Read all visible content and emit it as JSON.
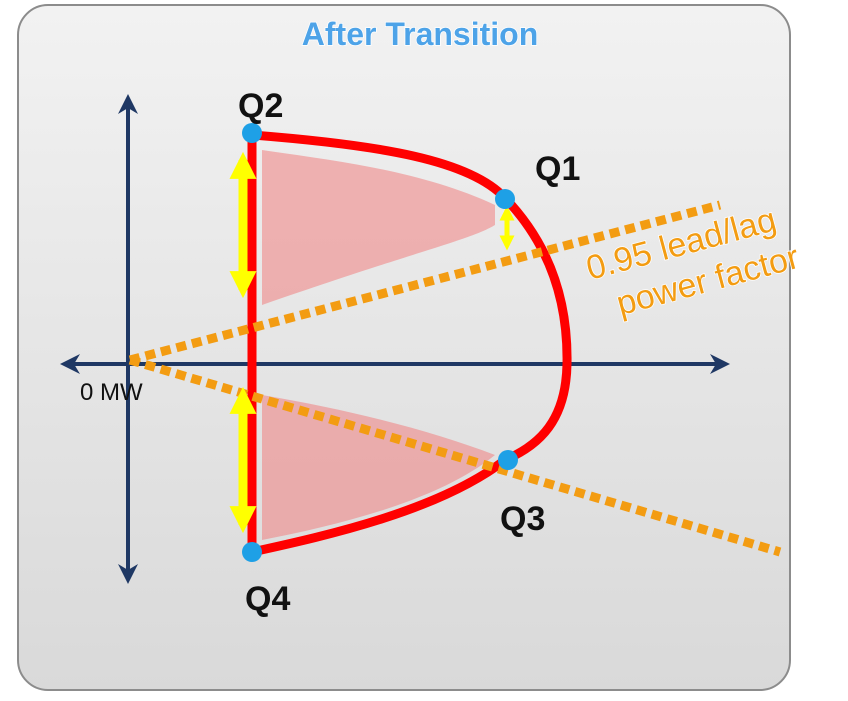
{
  "title": "After Transition",
  "points": [
    {
      "label": "Q1"
    },
    {
      "label": "Q2"
    },
    {
      "label": "Q3"
    },
    {
      "label": "Q4"
    }
  ],
  "axis_label": "0 MW",
  "annotation": {
    "lines": [
      "0.95 lead/lag",
      "power factor"
    ]
  }
}
